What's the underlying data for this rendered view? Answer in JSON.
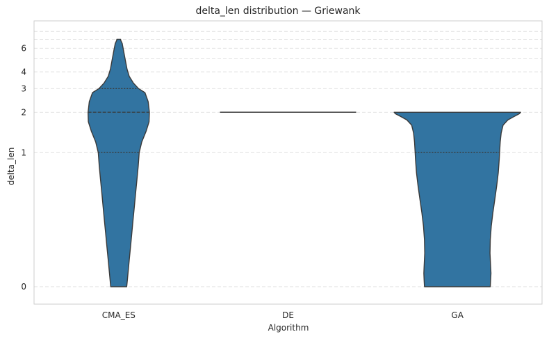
{
  "chart_data": {
    "type": "violin",
    "title": "delta_len distribution — Griewank",
    "xlabel": "Algorithm",
    "ylabel": "delta_len",
    "categories": [
      "CMA_ES",
      "DE",
      "GA"
    ],
    "y_scale": "symlog",
    "yticks": [
      0,
      1,
      2,
      3,
      4,
      6
    ],
    "ytick_labels": [
      "0",
      "1",
      "2",
      "3",
      "4",
      "6"
    ],
    "extra_gridlines": [
      5,
      7,
      8
    ],
    "ylim": [
      -0.13,
      9.6
    ],
    "grid": true,
    "grid_axis": "y",
    "color": "#3274a1",
    "edge_color": "#3a3a3a",
    "violins": [
      {
        "category": "CMA_ES",
        "quartiles": [
          1,
          2,
          3
        ],
        "profile": [
          [
            0,
            0.25
          ],
          [
            0.05,
            0.27
          ],
          [
            0.1,
            0.29
          ],
          [
            0.2,
            0.33
          ],
          [
            0.3,
            0.37
          ],
          [
            0.4,
            0.41
          ],
          [
            0.5,
            0.45
          ],
          [
            0.6,
            0.49
          ],
          [
            0.7,
            0.53
          ],
          [
            0.8,
            0.57
          ],
          [
            0.9,
            0.61
          ],
          [
            1.0,
            0.64
          ],
          [
            1.2,
            0.72
          ],
          [
            1.45,
            0.86
          ],
          [
            1.7,
            0.95
          ],
          [
            2.0,
            0.96
          ],
          [
            2.4,
            0.92
          ],
          [
            2.8,
            0.82
          ],
          [
            3.0,
            0.62
          ],
          [
            3.3,
            0.46
          ],
          [
            3.7,
            0.33
          ],
          [
            4.2,
            0.26
          ],
          [
            5.0,
            0.2
          ],
          [
            5.8,
            0.15
          ],
          [
            6.5,
            0.11
          ],
          [
            6.9,
            0.06
          ],
          [
            7.0,
            0.06
          ]
        ]
      },
      {
        "category": "DE",
        "quartiles": [],
        "profile": [
          [
            2,
            1.0
          ]
        ]
      },
      {
        "category": "GA",
        "quartiles": [
          1
        ],
        "profile": [
          [
            0,
            1.03
          ],
          [
            0.05,
            1.04
          ],
          [
            0.1,
            1.05
          ],
          [
            0.15,
            1.04
          ],
          [
            0.25,
            1.02
          ],
          [
            0.35,
            1.03
          ],
          [
            0.45,
            1.06
          ],
          [
            0.55,
            1.11
          ],
          [
            0.65,
            1.17
          ],
          [
            0.75,
            1.23
          ],
          [
            0.85,
            1.28
          ],
          [
            0.95,
            1.31
          ],
          [
            1.0,
            1.32
          ],
          [
            1.2,
            1.34
          ],
          [
            1.4,
            1.37
          ],
          [
            1.6,
            1.43
          ],
          [
            1.75,
            1.58
          ],
          [
            1.85,
            1.76
          ],
          [
            1.95,
            1.94
          ],
          [
            2.0,
            1.98
          ]
        ]
      }
    ]
  }
}
